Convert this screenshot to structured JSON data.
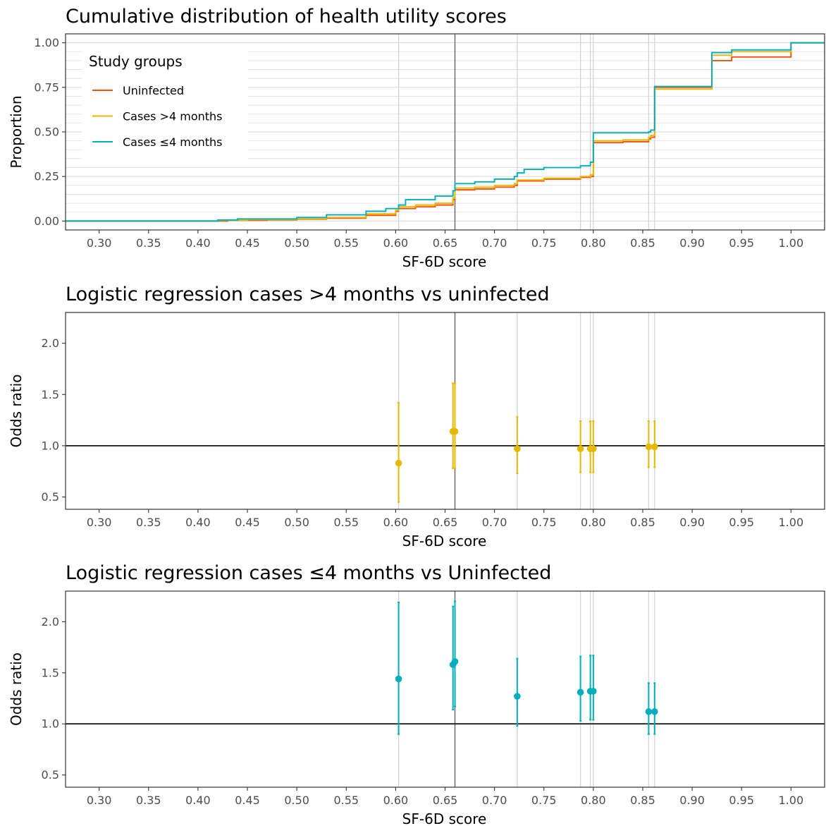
{
  "chart_data": [
    {
      "type": "line",
      "title": "Cumulative distribution of health utility scores",
      "xlabel": "SF-6D score",
      "ylabel": "Proportion",
      "xlim": [
        0.266,
        1.034
      ],
      "ylim": [
        -0.05,
        1.05
      ],
      "x_ticks": [
        0.3,
        0.35,
        0.4,
        0.45,
        0.5,
        0.55,
        0.6,
        0.65,
        0.7,
        0.75,
        0.8,
        0.85,
        0.9,
        0.95,
        1.0
      ],
      "x_tick_labels": [
        "0.30",
        "0.35",
        "0.40",
        "0.45",
        "0.50",
        "0.55",
        "0.60",
        "0.65",
        "0.70",
        "0.75",
        "0.80",
        "0.85",
        "0.90",
        "0.95",
        "1.00"
      ],
      "y_ticks": [
        0.0,
        0.25,
        0.5,
        0.75,
        1.0
      ],
      "y_tick_labels": [
        "0.00",
        "0.25",
        "0.50",
        "0.75",
        "1.00"
      ],
      "reference_lines": {
        "light": [
          0.603,
          0.723,
          0.787,
          0.797,
          0.8,
          0.856,
          0.862
        ],
        "dark": 0.66
      },
      "legend": {
        "title": "Study groups",
        "position": "top-left"
      },
      "grid": true,
      "series": [
        {
          "name": "Uninfected",
          "color": "#fc4e07",
          "step_points": [
            [
              0.266,
              0.0
            ],
            [
              0.4,
              0.0
            ],
            [
              0.43,
              0.004
            ],
            [
              0.47,
              0.006
            ],
            [
              0.5,
              0.01
            ],
            [
              0.53,
              0.016
            ],
            [
              0.57,
              0.032
            ],
            [
              0.6,
              0.055
            ],
            [
              0.603,
              0.07
            ],
            [
              0.62,
              0.08
            ],
            [
              0.64,
              0.09
            ],
            [
              0.658,
              0.12
            ],
            [
              0.66,
              0.175
            ],
            [
              0.68,
              0.18
            ],
            [
              0.7,
              0.19
            ],
            [
              0.72,
              0.2
            ],
            [
              0.723,
              0.225
            ],
            [
              0.75,
              0.235
            ],
            [
              0.787,
              0.245
            ],
            [
              0.797,
              0.25
            ],
            [
              0.8,
              0.44
            ],
            [
              0.83,
              0.445
            ],
            [
              0.856,
              0.46
            ],
            [
              0.858,
              0.47
            ],
            [
              0.862,
              0.75
            ],
            [
              0.92,
              0.9
            ],
            [
              0.94,
              0.92
            ],
            [
              1.0,
              1.0
            ],
            [
              1.034,
              1.0
            ]
          ]
        },
        {
          "name": "Cases >4 months",
          "color": "#e7b800",
          "step_points": [
            [
              0.266,
              0.0
            ],
            [
              0.4,
              0.0
            ],
            [
              0.42,
              0.004
            ],
            [
              0.45,
              0.008
            ],
            [
              0.5,
              0.012
            ],
            [
              0.53,
              0.02
            ],
            [
              0.57,
              0.04
            ],
            [
              0.6,
              0.06
            ],
            [
              0.603,
              0.08
            ],
            [
              0.62,
              0.09
            ],
            [
              0.64,
              0.1
            ],
            [
              0.658,
              0.13
            ],
            [
              0.66,
              0.185
            ],
            [
              0.68,
              0.19
            ],
            [
              0.7,
              0.2
            ],
            [
              0.72,
              0.21
            ],
            [
              0.723,
              0.23
            ],
            [
              0.75,
              0.24
            ],
            [
              0.787,
              0.25
            ],
            [
              0.797,
              0.26
            ],
            [
              0.8,
              0.45
            ],
            [
              0.83,
              0.455
            ],
            [
              0.856,
              0.47
            ],
            [
              0.858,
              0.48
            ],
            [
              0.862,
              0.74
            ],
            [
              0.92,
              0.93
            ],
            [
              0.94,
              0.95
            ],
            [
              1.0,
              1.0
            ],
            [
              1.034,
              1.0
            ]
          ]
        },
        {
          "name": "Cases ≤4 months",
          "color": "#00afbb",
          "step_points": [
            [
              0.266,
              0.0
            ],
            [
              0.4,
              0.0
            ],
            [
              0.42,
              0.006
            ],
            [
              0.44,
              0.012
            ],
            [
              0.5,
              0.02
            ],
            [
              0.53,
              0.035
            ],
            [
              0.57,
              0.055
            ],
            [
              0.59,
              0.07
            ],
            [
              0.603,
              0.09
            ],
            [
              0.61,
              0.12
            ],
            [
              0.64,
              0.14
            ],
            [
              0.658,
              0.17
            ],
            [
              0.66,
              0.21
            ],
            [
              0.68,
              0.22
            ],
            [
              0.7,
              0.235
            ],
            [
              0.72,
              0.25
            ],
            [
              0.723,
              0.27
            ],
            [
              0.73,
              0.29
            ],
            [
              0.75,
              0.3
            ],
            [
              0.787,
              0.31
            ],
            [
              0.797,
              0.33
            ],
            [
              0.8,
              0.495
            ],
            [
              0.856,
              0.5
            ],
            [
              0.858,
              0.51
            ],
            [
              0.862,
              0.755
            ],
            [
              0.92,
              0.945
            ],
            [
              0.94,
              0.96
            ],
            [
              1.0,
              1.0
            ],
            [
              1.034,
              1.0
            ]
          ]
        }
      ]
    },
    {
      "type": "scatter",
      "title": "Logistic regression cases >4 months vs uninfected",
      "xlabel": "SF-6D score",
      "ylabel": "Odds ratio",
      "xlim": [
        0.266,
        1.034
      ],
      "ylim": [
        0.38,
        2.3
      ],
      "x_ticks": [
        0.3,
        0.35,
        0.4,
        0.45,
        0.5,
        0.55,
        0.6,
        0.65,
        0.7,
        0.75,
        0.8,
        0.85,
        0.9,
        0.95,
        1.0
      ],
      "x_tick_labels": [
        "0.30",
        "0.35",
        "0.40",
        "0.45",
        "0.50",
        "0.55",
        "0.60",
        "0.65",
        "0.70",
        "0.75",
        "0.80",
        "0.85",
        "0.90",
        "0.95",
        "1.00"
      ],
      "y_ticks": [
        0.5,
        1.0,
        1.5,
        2.0
      ],
      "y_tick_labels": [
        "0.5",
        "1.0",
        "1.5",
        "2.0"
      ],
      "reference_line_y": 1.0,
      "reference_lines": {
        "light": [
          0.603,
          0.723,
          0.787,
          0.797,
          0.8,
          0.856,
          0.862
        ],
        "dark": 0.66
      },
      "grid": false,
      "series": [
        {
          "color": "#e7b800",
          "points": [
            {
              "x": 0.603,
              "y": 0.83,
              "lo": 0.45,
              "hi": 1.42
            },
            {
              "x": 0.658,
              "y": 1.14,
              "lo": 0.78,
              "hi": 1.61
            },
            {
              "x": 0.66,
              "y": 1.14,
              "lo": 0.78,
              "hi": 1.61
            },
            {
              "x": 0.723,
              "y": 0.97,
              "lo": 0.73,
              "hi": 1.28
            },
            {
              "x": 0.787,
              "y": 0.97,
              "lo": 0.74,
              "hi": 1.24
            },
            {
              "x": 0.797,
              "y": 0.97,
              "lo": 0.74,
              "hi": 1.24
            },
            {
              "x": 0.8,
              "y": 0.97,
              "lo": 0.74,
              "hi": 1.24
            },
            {
              "x": 0.856,
              "y": 0.99,
              "lo": 0.79,
              "hi": 1.24
            },
            {
              "x": 0.862,
              "y": 0.99,
              "lo": 0.79,
              "hi": 1.24
            }
          ]
        }
      ]
    },
    {
      "type": "scatter",
      "title": "Logistic regression cases ≤4 months vs Uninfected",
      "xlabel": "SF-6D score",
      "ylabel": "Odds ratio",
      "xlim": [
        0.266,
        1.034
      ],
      "ylim": [
        0.38,
        2.3
      ],
      "x_ticks": [
        0.3,
        0.35,
        0.4,
        0.45,
        0.5,
        0.55,
        0.6,
        0.65,
        0.7,
        0.75,
        0.8,
        0.85,
        0.9,
        0.95,
        1.0
      ],
      "x_tick_labels": [
        "0.30",
        "0.35",
        "0.40",
        "0.45",
        "0.50",
        "0.55",
        "0.60",
        "0.65",
        "0.70",
        "0.75",
        "0.80",
        "0.85",
        "0.90",
        "0.95",
        "1.00"
      ],
      "y_ticks": [
        0.5,
        1.0,
        1.5,
        2.0
      ],
      "y_tick_labels": [
        "0.5",
        "1.0",
        "1.5",
        "2.0"
      ],
      "reference_line_y": 1.0,
      "reference_lines": {
        "light": [
          0.603,
          0.723,
          0.787,
          0.797,
          0.8,
          0.856,
          0.862
        ],
        "dark": 0.66
      },
      "grid": false,
      "series": [
        {
          "color": "#00afbb",
          "points": [
            {
              "x": 0.603,
              "y": 1.44,
              "lo": 0.9,
              "hi": 2.19
            },
            {
              "x": 0.658,
              "y": 1.58,
              "lo": 1.14,
              "hi": 2.15
            },
            {
              "x": 0.66,
              "y": 1.61,
              "lo": 1.17,
              "hi": 2.2
            },
            {
              "x": 0.723,
              "y": 1.27,
              "lo": 0.98,
              "hi": 1.64
            },
            {
              "x": 0.787,
              "y": 1.31,
              "lo": 1.03,
              "hi": 1.66
            },
            {
              "x": 0.797,
              "y": 1.32,
              "lo": 1.04,
              "hi": 1.67
            },
            {
              "x": 0.8,
              "y": 1.32,
              "lo": 1.04,
              "hi": 1.67
            },
            {
              "x": 0.856,
              "y": 1.12,
              "lo": 0.9,
              "hi": 1.4
            },
            {
              "x": 0.862,
              "y": 1.12,
              "lo": 0.9,
              "hi": 1.4
            }
          ]
        }
      ]
    }
  ]
}
